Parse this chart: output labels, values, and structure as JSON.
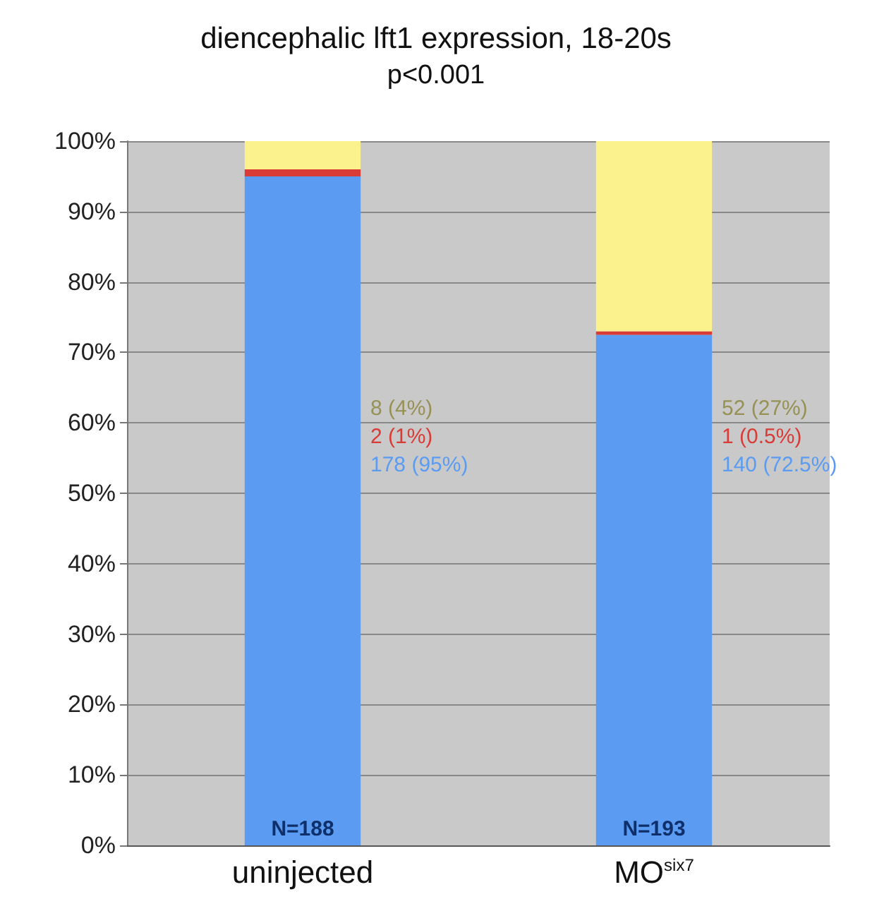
{
  "chart_data": {
    "type": "bar",
    "stacked": true,
    "title": "diencephalic lft1 expression, 18-20s",
    "subtitle": "p<0.001",
    "categories": [
      "uninjected",
      "MO$^{six7}$"
    ],
    "series": [
      {
        "color": "#5b9cf2",
        "values": [
          95,
          72.5
        ]
      },
      {
        "color": "#d93b36",
        "values": [
          1,
          0.5
        ]
      },
      {
        "color": "#fbf28e",
        "values": [
          4,
          27
        ]
      }
    ],
    "annotations": [
      {
        "text": "N=188",
        "x": "uninjected",
        "y": 0
      },
      {
        "text": "N=193",
        "x": "MO$^{six7}$",
        "y": 0
      },
      "8 (4%)",
      "2 (1%)",
      "178 (95%)",
      "52 (27%)",
      "1 (0.5%)",
      "140 (72.5%)"
    ],
    "ylim": [
      0,
      100
    ],
    "yticks": [
      {
        "value": 0,
        "label": "0%"
      },
      {
        "value": 10,
        "label": "10%"
      },
      {
        "value": 20,
        "label": "20%"
      },
      {
        "value": 30,
        "label": "30%"
      },
      {
        "value": 40,
        "label": "40%"
      },
      {
        "value": 50,
        "label": "50%"
      },
      {
        "value": 60,
        "label": "60%"
      },
      {
        "value": 70,
        "label": "70%"
      },
      {
        "value": 80,
        "label": "80%"
      },
      {
        "value": 90,
        "label": "90%"
      },
      {
        "value": 100,
        "label": "100%"
      }
    ],
    "grid": "y"
  }
}
